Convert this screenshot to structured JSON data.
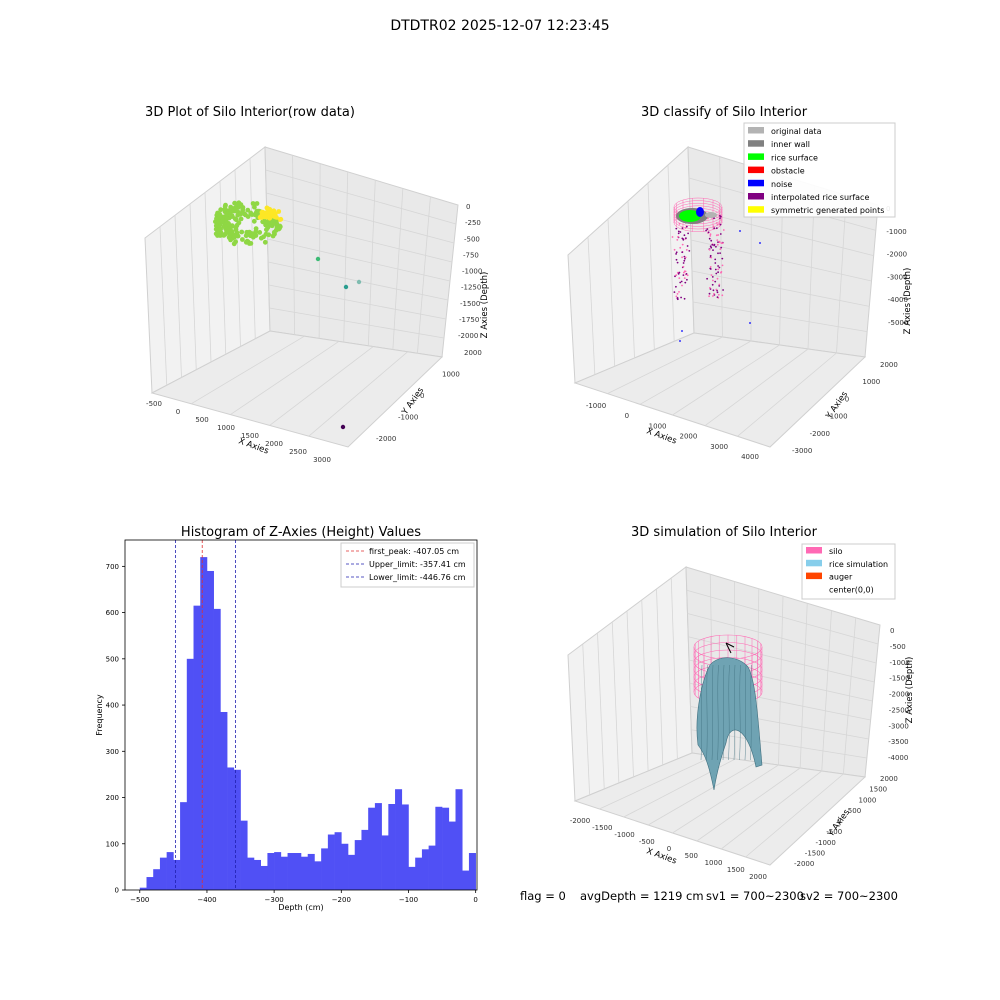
{
  "suptitle": "DTDTR02 2025-12-07 12:23:45",
  "status": {
    "flag": "flag = 0",
    "avg_depth": "avgDepth = 1219 cm",
    "sv1": "sv1 = 700~2300",
    "sv2": "sv2 = 700~2300"
  },
  "chart_data": [
    {
      "type": "scatter3d",
      "title": "3D Plot of Silo Interior(row data)",
      "xlabel": "X Axies",
      "ylabel": "Y Axies",
      "zlabel": "Z Axies (Depth)",
      "x_ticks": [
        "-500",
        "0",
        "500",
        "1000",
        "1500",
        "2000",
        "2500",
        "3000"
      ],
      "y_ticks": [
        "-2000",
        "-1000",
        "0",
        "1000",
        "2000"
      ],
      "z_ticks": [
        "0",
        "-250",
        "-500",
        "-750",
        "-1000",
        "-1250",
        "-1500",
        "-1750",
        "-2000"
      ],
      "colors": {
        "points_main": "#8fd744",
        "points_top": "#fde725",
        "outlier_1": "#3cbb75",
        "outlier_2": "#2a9d8f",
        "outlier_3": "#7fbcb0",
        "outlier_4": "#440154"
      }
    },
    {
      "type": "scatter3d",
      "title": "3D classify of Silo Interior",
      "xlabel": "X Axies",
      "ylabel": "Y Axies",
      "zlabel": "Z Axies (Depth)",
      "x_ticks": [
        "-1000",
        "0",
        "1000",
        "2000",
        "3000",
        "4000"
      ],
      "y_ticks": [
        "-3000",
        "-2000",
        "-1000",
        "0",
        "1000",
        "2000"
      ],
      "z_ticks": [
        "0",
        "-1000",
        "-2000",
        "-3000",
        "-4000",
        "-5000"
      ],
      "legend_position": "top-right",
      "legend": [
        {
          "label": "original data",
          "color": "#b3b3b3"
        },
        {
          "label": "inner wall",
          "color": "#808080"
        },
        {
          "label": "rice surface",
          "color": "#00ff00"
        },
        {
          "label": "obstacle",
          "color": "#ff0000"
        },
        {
          "label": "noise",
          "color": "#0000ff"
        },
        {
          "label": "interpolated rice surface",
          "color": "#800080"
        },
        {
          "label": "symmetric generated points",
          "color": "#ffff00"
        }
      ],
      "colors": {
        "wall_mesh": "#ff69b4",
        "noise": "#0000ff",
        "purple": "#800080"
      }
    },
    {
      "type": "bar",
      "title": "Histogram of Z-Axies (Height) Values",
      "xlabel": "Depth (cm)",
      "ylabel": "Frequency",
      "xlim": [
        -522,
        2
      ],
      "ylim": [
        0,
        757
      ],
      "x_ticks": [
        -500,
        -400,
        -300,
        -200,
        -100,
        0
      ],
      "y_ticks": [
        0,
        100,
        200,
        300,
        400,
        500,
        600,
        700
      ],
      "bin_start": -500,
      "bin_width": 10,
      "values": [
        5,
        28,
        45,
        70,
        82,
        65,
        190,
        500,
        615,
        720,
        690,
        608,
        385,
        265,
        260,
        150,
        70,
        65,
        52,
        80,
        82,
        72,
        80,
        80,
        72,
        78,
        62,
        90,
        120,
        125,
        100,
        76,
        108,
        130,
        178,
        188,
        118,
        186,
        218,
        185,
        50,
        70,
        88,
        96,
        180,
        178,
        148,
        218,
        42,
        80
      ],
      "bar_color": "#5050f5",
      "legend_position": "top-right",
      "vlines": [
        {
          "label": "first_peak: -407.05 cm",
          "value": -407.05,
          "color": "#e03030"
        },
        {
          "label": "Upper_limit: -357.41 cm",
          "value": -357.41,
          "color": "#2020b0"
        },
        {
          "label": "Lower_limit: -446.76 cm",
          "value": -446.76,
          "color": "#2020b0"
        }
      ]
    },
    {
      "type": "surface3d",
      "title": "3D simulation of Silo Interior",
      "xlabel": "X Axies",
      "ylabel": "Y Axies",
      "zlabel": "Z Axies (Depth)",
      "x_ticks": [
        "-2000",
        "-1500",
        "-1000",
        "-500",
        "0",
        "500",
        "1000",
        "1500",
        "2000"
      ],
      "y_ticks": [
        "-2000",
        "-1500",
        "-1000",
        "-500",
        "0",
        "500",
        "1000",
        "1500",
        "2000"
      ],
      "z_ticks": [
        "0",
        "-500",
        "-1000",
        "-1500",
        "-2000",
        "-2500",
        "-3000",
        "-3500",
        "-4000"
      ],
      "legend_position": "top-right",
      "legend": [
        {
          "label": "silo",
          "color": "#ff69b4"
        },
        {
          "label": "rice simulation",
          "color": "#87ceeb"
        },
        {
          "label": "auger",
          "color": "#ff4500"
        },
        {
          "label": "center(0,0)",
          "color": "none"
        }
      ],
      "colors": {
        "surface": "#6fa3b3",
        "surface_dark": "#3e6e7e"
      }
    }
  ]
}
